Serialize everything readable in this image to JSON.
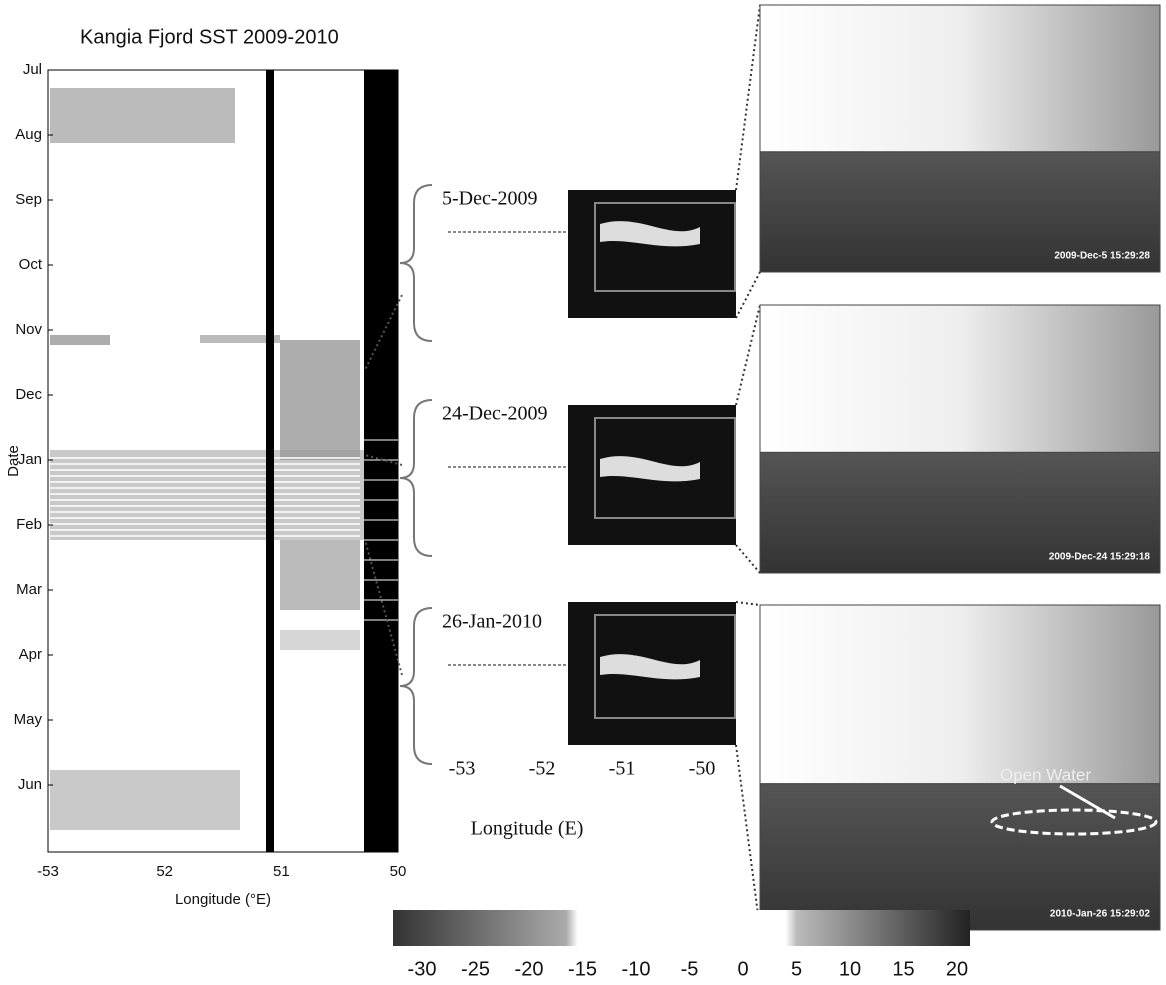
{
  "title": "Kangia Fjord SST  2009-2010",
  "hovmoller": {
    "y_label": "Date",
    "months": [
      "Jul",
      "Aug",
      "Sep",
      "Oct",
      "Nov",
      "Dec",
      "Jan",
      "Feb",
      "Mar",
      "Apr",
      "May",
      "Jun"
    ],
    "x_ticks": [
      "-53",
      "52",
      "51",
      "50"
    ],
    "x_label": "Longitude (°E)"
  },
  "snapshots": [
    {
      "date": "5-Dec-2009",
      "timestamp": "2009-Dec-5  15:29:28"
    },
    {
      "date": "24-Dec-2009",
      "timestamp": "2009-Dec-24  15:29:18"
    },
    {
      "date": "26-Jan-2010",
      "timestamp": "2010-Jan-26  15:29:02"
    }
  ],
  "map_x_ticks": [
    "-53",
    "-52",
    "-51",
    "-50"
  ],
  "map_x_label": "Longitude (E)",
  "annotation": "Open Water",
  "colorbar_ticks": [
    "-30",
    "-25",
    "-20",
    "-15",
    "-10",
    "-5",
    "0",
    "5",
    "10",
    "15",
    "20"
  ]
}
